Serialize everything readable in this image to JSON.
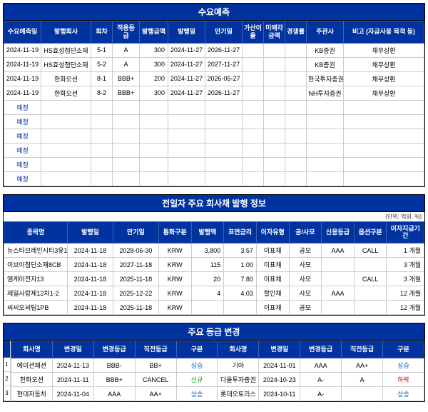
{
  "forecast": {
    "title": "수요예측",
    "headers": [
      "수요예측일",
      "발행회사",
      "회차",
      "적용등급",
      "발행금액",
      "발행일",
      "만기일",
      "가산이율",
      "미매각금액",
      "경쟁률",
      "주관사",
      "비고 (자금사용 목적 등)"
    ],
    "rows": [
      {
        "date": "2024-11-19",
        "company": "HS효성첨단소재",
        "round": "5-1",
        "grade": "A",
        "amount": "300",
        "issue": "2024-11-27",
        "maturity": "2026-11-27",
        "spread": "",
        "unsold": "",
        "comp": "",
        "lead": "KB증권",
        "note": "채무상환"
      },
      {
        "date": "2024-11-19",
        "company": "HS효성첨단소재",
        "round": "5-2",
        "grade": "A",
        "amount": "300",
        "issue": "2024-11-27",
        "maturity": "2027-11-27",
        "spread": "",
        "unsold": "",
        "comp": "",
        "lead": "KB증권",
        "note": "채무상환"
      },
      {
        "date": "2024-11-19",
        "company": "한화오션",
        "round": "8-1",
        "grade": "BBB+",
        "amount": "200",
        "issue": "2024-11-27",
        "maturity": "2026-05-27",
        "spread": "",
        "unsold": "",
        "comp": "",
        "lead": "한국투자증권",
        "note": "채무상환"
      },
      {
        "date": "2024-11-19",
        "company": "한화오션",
        "round": "8-2",
        "grade": "BBB+",
        "amount": "300",
        "issue": "2024-11-27",
        "maturity": "2026-11-27",
        "spread": "",
        "unsold": "",
        "comp": "",
        "lead": "NH투자증권",
        "note": "채무상환"
      }
    ],
    "pending_label": "예정",
    "pending_count": 6
  },
  "prev": {
    "title": "전일자 주요 회사채 발행 정보",
    "unit": "(단위: 억원, %)",
    "headers": [
      "종목명",
      "발행일",
      "만기일",
      "통화구분",
      "발행액",
      "표면금리",
      "이자유형",
      "공/사모",
      "신용등급",
      "옵션구분",
      "이자지급기간"
    ],
    "rows": [
      {
        "name": "뉴스타브레인시티3유1",
        "issue": "2024-11-18",
        "maturity": "2028-06-30",
        "ccy": "KRW",
        "amt": "3,800",
        "coupon": "3.57",
        "int": "이표채",
        "pub": "공모",
        "rating": "AAA",
        "opt": "CALL",
        "period": "1 개월"
      },
      {
        "name": "이브이첨단소재8CB",
        "issue": "2024-11-18",
        "maturity": "2027-11-18",
        "ccy": "KRW",
        "amt": "115",
        "coupon": "1.00",
        "int": "이표채",
        "pub": "사모",
        "rating": "",
        "opt": "",
        "period": "3 개월"
      },
      {
        "name": "엠케이전자13",
        "issue": "2024-11-18",
        "maturity": "2025-11-18",
        "ccy": "KRW",
        "amt": "20",
        "coupon": "7.80",
        "int": "이표채",
        "pub": "사모",
        "rating": "",
        "opt": "CALL",
        "period": "3 개월"
      },
      {
        "name": "제일사랑제12차1-2",
        "issue": "2024-11-18",
        "maturity": "2025-12-22",
        "ccy": "KRW",
        "amt": "4",
        "coupon": "4.03",
        "int": "할인채",
        "pub": "사모",
        "rating": "AAA",
        "opt": "",
        "period": "12 개월"
      },
      {
        "name": "씨씨오씨팀1PB",
        "issue": "2024-11-18",
        "maturity": "2025-11-18",
        "ccy": "KRW",
        "amt": "",
        "coupon": "",
        "int": "이표채",
        "pub": "공모",
        "rating": "",
        "opt": "",
        "period": "12 개월"
      }
    ]
  },
  "rating": {
    "title": "주요 등급 변경",
    "headers": [
      "회사명",
      "변경일",
      "변경등급",
      "직전등급",
      "구분"
    ],
    "left": [
      {
        "name": "에이션패션",
        "date": "2024-11-13",
        "new": "BBB-",
        "prev": "BB+",
        "dir": "상승",
        "dir_class": "up"
      },
      {
        "name": "한화오션",
        "date": "2024-11-11",
        "new": "BBB+",
        "prev": "CANCEL",
        "dir": "신규",
        "dir_class": "new"
      },
      {
        "name": "현대자동차",
        "date": "2024-11-04",
        "new": "AAA",
        "prev": "AA+",
        "dir": "상승",
        "dir_class": "up"
      }
    ],
    "right": [
      {
        "name": "기아",
        "date": "2024-11-01",
        "new": "AAA",
        "prev": "AA+",
        "dir": "상승",
        "dir_class": "up"
      },
      {
        "name": "다올투자증권",
        "date": "2024-10-23",
        "new": "A-",
        "prev": "A",
        "dir": "하락",
        "dir_class": "down"
      },
      {
        "name": "롯데오토리스",
        "date": "2024-10-11",
        "new": "A-",
        "prev": "",
        "dir": "상승",
        "dir_class": "up"
      }
    ]
  }
}
